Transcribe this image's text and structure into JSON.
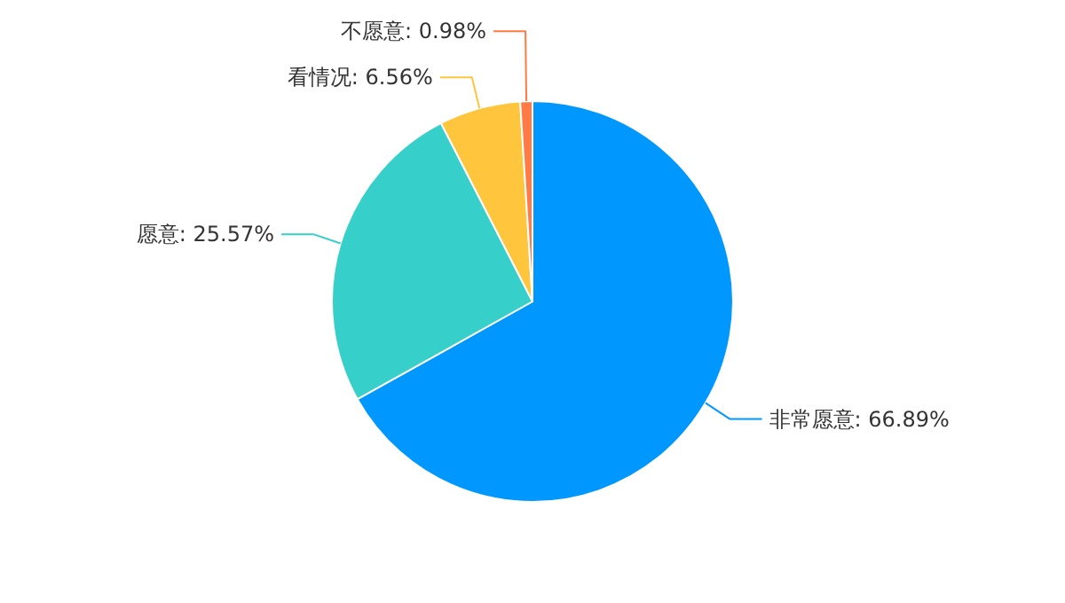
{
  "chart_data": {
    "type": "pie",
    "categories": [
      "非常愿意",
      "愿意",
      "看情况",
      "不愿意"
    ],
    "values": [
      66.89,
      25.57,
      6.56,
      0.98
    ],
    "colors": [
      "#0098fe",
      "#36cfc9",
      "#ffc53d",
      "#ff7a45"
    ],
    "value_labels": [
      "66.89%",
      "25.57%",
      "6.56%",
      "0.98%"
    ]
  }
}
